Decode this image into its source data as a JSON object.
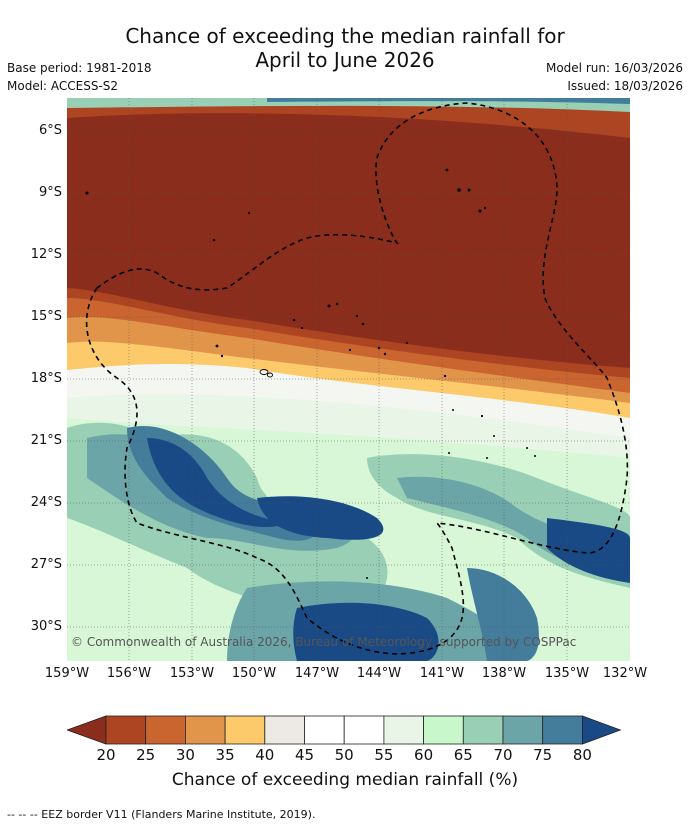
{
  "title_line1": "Chance of exceeding the median rainfall for",
  "title_line2": "April to June 2026",
  "base_period": "Base period: 1981-2018",
  "model": "Model: ACCESS-S2",
  "model_run": "Model run: 16/03/2026",
  "issued": "Issued: 18/03/2026",
  "map": {
    "lat_labels": [
      "6°S",
      "9°S",
      "12°S",
      "15°S",
      "18°S",
      "21°S",
      "24°S",
      "27°S",
      "30°S"
    ],
    "lon_labels": [
      "159°W",
      "156°W",
      "153°W",
      "150°W",
      "147°W",
      "144°W",
      "141°W",
      "138°W",
      "135°W",
      "132°W"
    ],
    "copyright": "© Commonwealth of Australia 2026, Bureau of Meteorology, supported by COSPPac"
  },
  "legend": {
    "title": "Chance of exceeding median rainfall (%)",
    "ticks": [
      "20",
      "25",
      "30",
      "35",
      "40",
      "45",
      "50",
      "55",
      "60",
      "65",
      "70",
      "75",
      "80"
    ],
    "colors": [
      "#8b2d1c",
      "#ae4522",
      "#cb6530",
      "#e1954b",
      "#fcc96b",
      "#ede9e4",
      "#ffffff",
      "#ffffff",
      "#e9f5e6",
      "#c8f7cb",
      "#98cfb5",
      "#6ca5a8",
      "#447d9c",
      "#1a4a85"
    ]
  },
  "footnote": "--  --  -- EEZ border V11 (Flanders Marine Institute, 2019)."
}
